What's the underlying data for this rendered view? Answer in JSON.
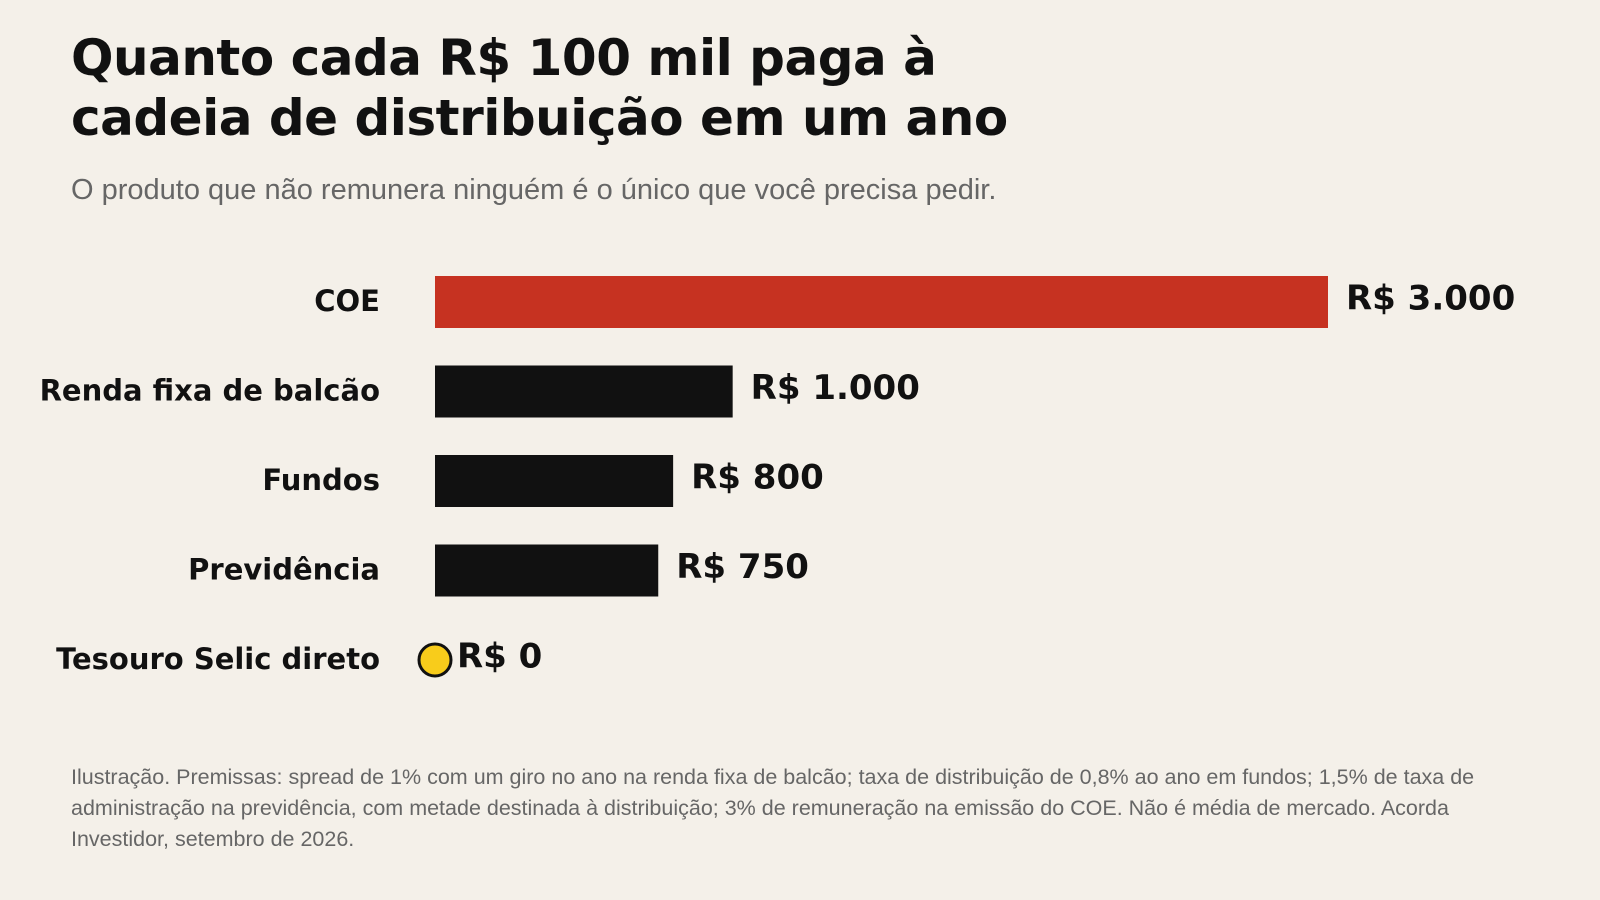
{
  "chart_data": {
    "type": "bar",
    "orientation": "horizontal",
    "title": "Quanto cada R$ 100 mil paga à cadeia de distribuição em um ano",
    "subtitle": "O produto que não remunera ninguém é o único que você precisa pedir.",
    "categories": [
      "COE",
      "Renda fixa de balcão",
      "Fundos",
      "Previdência",
      "Tesouro Selic direto"
    ],
    "values": [
      3000,
      1000,
      800,
      750,
      0
    ],
    "value_labels": [
      "R$ 3.000",
      "R$ 1.000",
      "R$ 800",
      "R$ 750",
      "R$ 0"
    ],
    "colors": [
      "#c63221",
      "#111111",
      "#111111",
      "#111111",
      "#f8cc1b"
    ],
    "footnote": "Ilustração. Premissas: spread de 1% com um giro no ano na renda fixa de balcão; taxa de distribuição de 0,8% ao ano em fundos; 1,5% de taxa de administração na previdência, com metade destinada à distribuição; 3% de remuneração na emissão do COE. Não é média de mercado. Acorda Investidor, setembro de 2026."
  }
}
